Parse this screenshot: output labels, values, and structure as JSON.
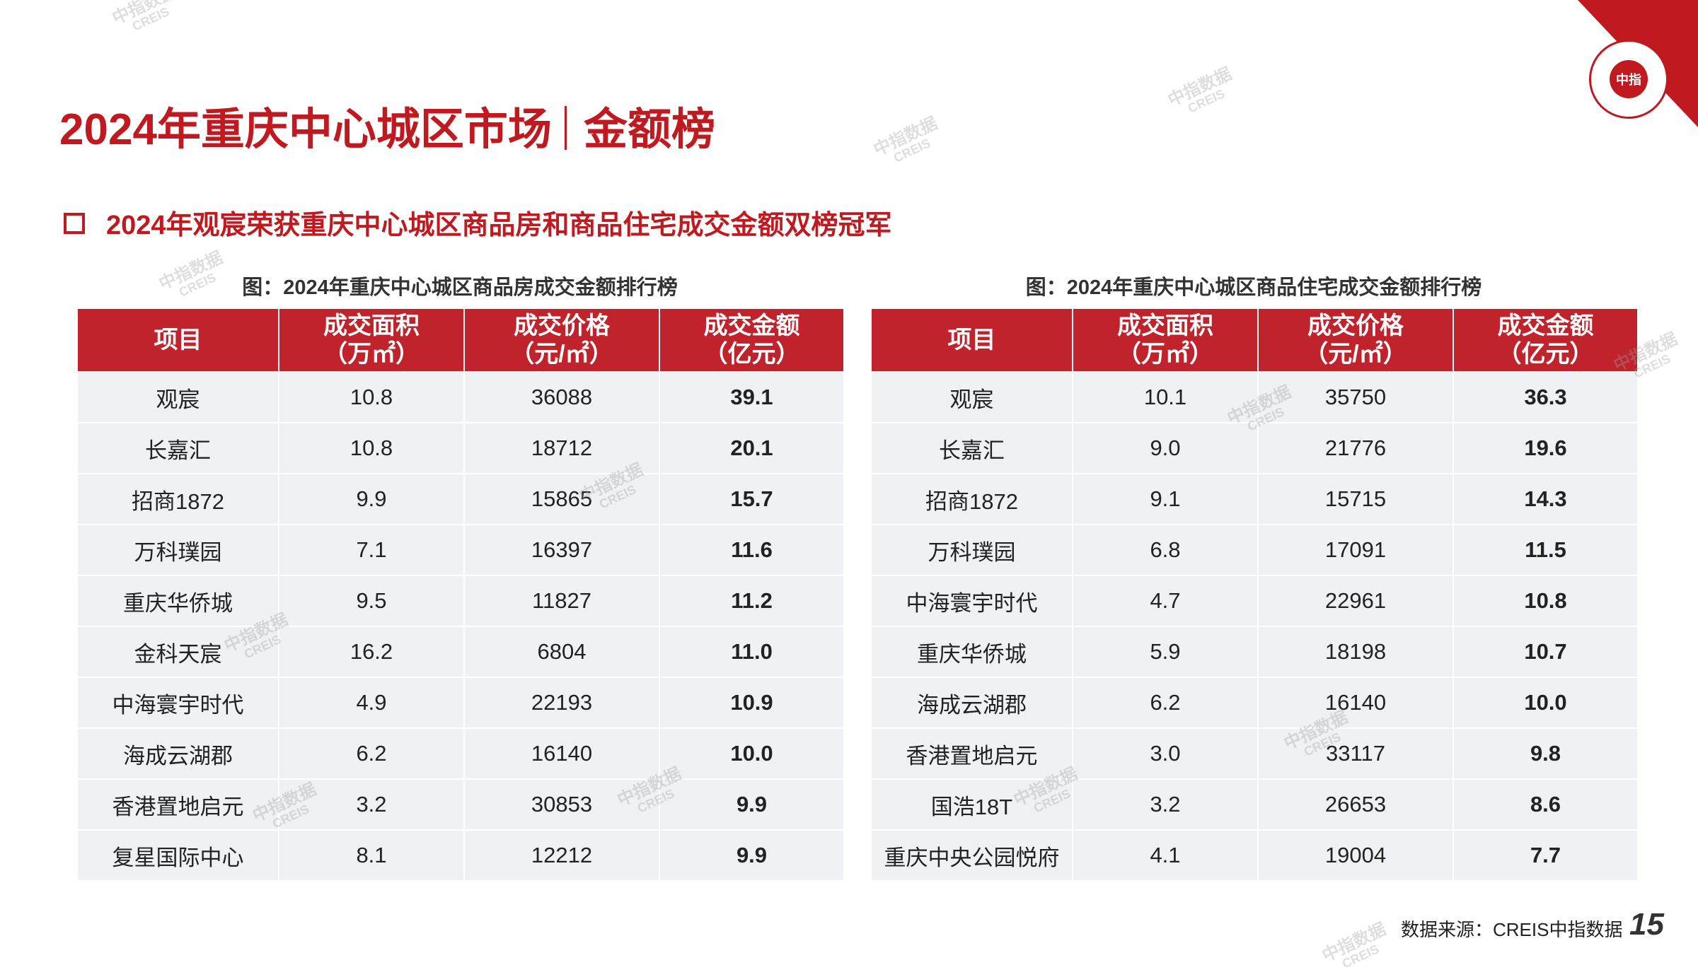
{
  "header": {
    "title_main": "2024年重庆中心城区市场",
    "title_section": "金额榜"
  },
  "subtitle": "2024年观宸荣获重庆中心城区商品房和商品住宅成交金额双榜冠军",
  "logo": {
    "text": "中指"
  },
  "tables": [
    {
      "caption": "图：2024年重庆中心城区商品房成交金额排行榜",
      "headers": [
        {
          "line1": "项目",
          "line2": ""
        },
        {
          "line1": "成交面积",
          "line2": "（万㎡）"
        },
        {
          "line1": "成交价格",
          "line2": "（元/㎡）"
        },
        {
          "line1": "成交金额",
          "line2": "（亿元）"
        }
      ],
      "rows": [
        [
          "观宸",
          "10.8",
          "36088",
          "39.1"
        ],
        [
          "长嘉汇",
          "10.8",
          "18712",
          "20.1"
        ],
        [
          "招商1872",
          "9.9",
          "15865",
          "15.7"
        ],
        [
          "万科璞园",
          "7.1",
          "16397",
          "11.6"
        ],
        [
          "重庆华侨城",
          "9.5",
          "11827",
          "11.2"
        ],
        [
          "金科天宸",
          "16.2",
          "6804",
          "11.0"
        ],
        [
          "中海寰宇时代",
          "4.9",
          "22193",
          "10.9"
        ],
        [
          "海成云湖郡",
          "6.2",
          "16140",
          "10.0"
        ],
        [
          "香港置地启元",
          "3.2",
          "30853",
          "9.9"
        ],
        [
          "复星国际中心",
          "8.1",
          "12212",
          "9.9"
        ]
      ]
    },
    {
      "caption": "图：2024年重庆中心城区商品住宅成交金额排行榜",
      "headers": [
        {
          "line1": "项目",
          "line2": ""
        },
        {
          "line1": "成交面积",
          "line2": "（万㎡）"
        },
        {
          "line1": "成交价格",
          "line2": "（元/㎡）"
        },
        {
          "line1": "成交金额",
          "line2": "（亿元）"
        }
      ],
      "rows": [
        [
          "观宸",
          "10.1",
          "35750",
          "36.3"
        ],
        [
          "长嘉汇",
          "9.0",
          "21776",
          "19.6"
        ],
        [
          "招商1872",
          "9.1",
          "15715",
          "14.3"
        ],
        [
          "万科璞园",
          "6.8",
          "17091",
          "11.5"
        ],
        [
          "中海寰宇时代",
          "4.7",
          "22961",
          "10.8"
        ],
        [
          "重庆华侨城",
          "5.9",
          "18198",
          "10.7"
        ],
        [
          "海成云湖郡",
          "6.2",
          "16140",
          "10.0"
        ],
        [
          "香港置地启元",
          "3.0",
          "33117",
          "9.8"
        ],
        [
          "国浩18T",
          "3.2",
          "26653",
          "8.6"
        ],
        [
          "重庆中央公园悦府",
          "4.1",
          "19004",
          "7.7"
        ]
      ]
    }
  ],
  "watermark": {
    "line1": "中指数据",
    "line2": "CREIS"
  },
  "footer": {
    "source": "数据来源：CREIS中指数据",
    "page_number": "15"
  },
  "colors": {
    "brand_red": "#c01920",
    "header_bg": "#c0232b",
    "row_bg": "#f0f1f5"
  }
}
